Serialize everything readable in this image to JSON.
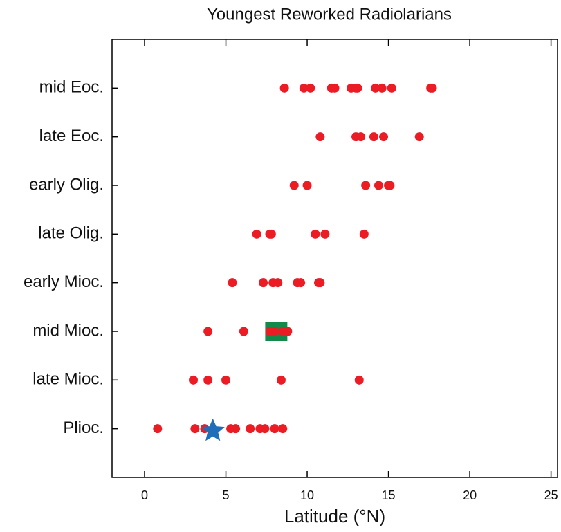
{
  "chart_data": {
    "type": "scatter",
    "title": "Youngest Reworked Radiolarians",
    "xlabel": "Latitude (°N)",
    "xlim": [
      -2,
      25.4
    ],
    "xticks": [
      0,
      5,
      10,
      15,
      20,
      25
    ],
    "color": "#ec1c24",
    "groups": [
      {
        "category": "mid Eoc.",
        "x": [
          8.6,
          9.8,
          10.2,
          11.5,
          11.7,
          12.7,
          13.0,
          13.1,
          14.2,
          14.6,
          15.2,
          17.6,
          17.7
        ]
      },
      {
        "category": "late Eoc.",
        "x": [
          10.8,
          13.0,
          13.3,
          14.1,
          14.7,
          16.9
        ]
      },
      {
        "category": "early Olig.",
        "x": [
          9.2,
          10.0,
          13.6,
          14.4,
          15.0,
          15.1
        ]
      },
      {
        "category": "late Olig.",
        "x": [
          6.9,
          7.7,
          7.8,
          10.5,
          11.1,
          13.5
        ]
      },
      {
        "category": "early Mioc.",
        "x": [
          5.4,
          7.3,
          7.9,
          8.2,
          9.4,
          9.6,
          10.7,
          10.8
        ]
      },
      {
        "category": "mid Mioc.",
        "x": [
          3.9,
          6.1,
          7.7,
          8.0,
          8.5,
          8.8
        ],
        "marker": {
          "shape": "square",
          "color": "#138a4a",
          "x": 8.1
        }
      },
      {
        "category": "late Mioc.",
        "x": [
          3.0,
          3.9,
          5.0,
          8.4,
          13.2
        ]
      },
      {
        "category": "Plioc.",
        "x": [
          0.8,
          3.1,
          3.7,
          5.3,
          5.6,
          6.5,
          7.1,
          7.4,
          8.0,
          8.5
        ],
        "marker": {
          "shape": "star",
          "color": "#1f6fb8",
          "x": 4.2
        }
      }
    ]
  }
}
